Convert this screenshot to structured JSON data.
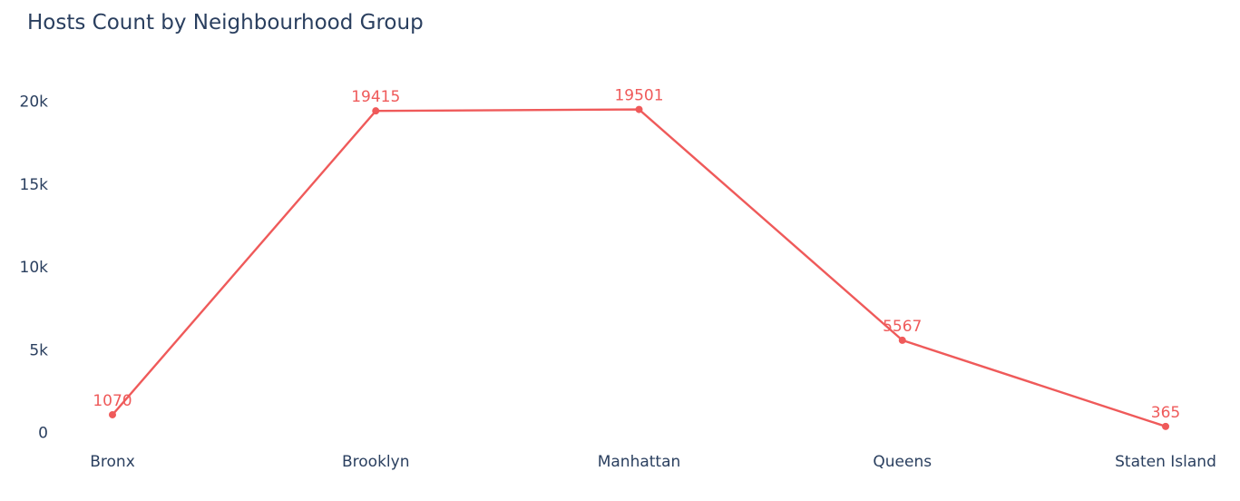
{
  "chart_data": {
    "type": "line",
    "title": "Hosts Count by Neighbourhood Group",
    "xlabel": "",
    "ylabel": "",
    "categories": [
      "Bronx",
      "Brooklyn",
      "Manhattan",
      "Queens",
      "Staten Island"
    ],
    "series": [
      {
        "values": [
          1070,
          19415,
          19501,
          5567,
          365
        ],
        "color": "#ef5a5a"
      }
    ],
    "ylim": [
      -600,
      22500
    ],
    "yticks": [
      0,
      5000,
      10000,
      15000,
      20000
    ],
    "ytick_labels": [
      "0",
      "5k",
      "10k",
      "15k",
      "20k"
    ],
    "grid": false,
    "legend": "none",
    "data_labels": true,
    "colors": {
      "line": "#ef5a5a",
      "text": "#2a3f5f",
      "background": "#ffffff"
    }
  }
}
